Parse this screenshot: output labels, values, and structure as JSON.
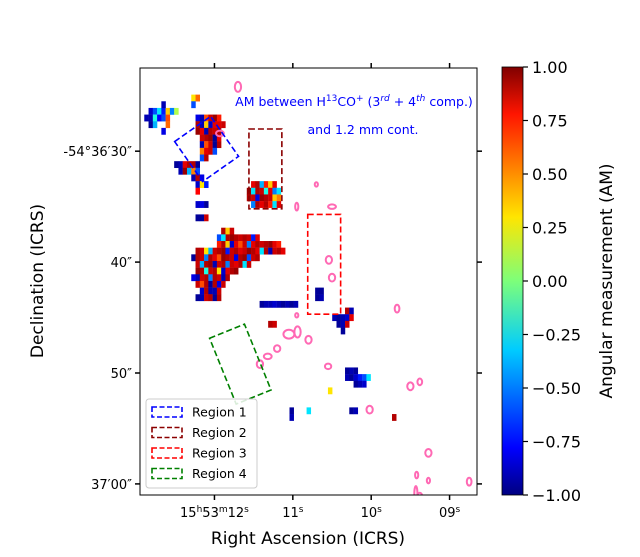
{
  "chart_data": {
    "type": "heatmap",
    "title": "",
    "annotation": {
      "line1": {
        "a": "AM between H",
        "sup1": "13",
        "b": "CO",
        "sup2": "+",
        "c": " (3",
        "sup3": "rd",
        "d": " + 4",
        "sup4": "th",
        "e": " comp.)"
      },
      "line2": "and 1.2 mm cont."
    },
    "xlabel": "Right Ascension (ICRS)",
    "ylabel": "Declination (ICRS)",
    "xlim_s": [
      12.95,
      8.65
    ],
    "ylim_arcsec": [
      61.0,
      22.5
    ],
    "xticks": [
      {
        "value": 12.0,
        "main": "15",
        "sup1": "h",
        "mid": "53",
        "sup2": "m",
        "end": "12",
        "sup3": "s"
      },
      {
        "value": 11.0,
        "main": "11",
        "sup1": "s"
      },
      {
        "value": 10.0,
        "main": "10",
        "sup1": "s"
      },
      {
        "value": 9.0,
        "main": "09",
        "sup1": "s"
      }
    ],
    "yticks": [
      {
        "value": 30.0,
        "label": "-54°36′30″"
      },
      {
        "value": 40.0,
        "label": "40″"
      },
      {
        "value": 50.0,
        "label": "50″"
      },
      {
        "value": 60.0,
        "label": "37′00″"
      }
    ],
    "colorbar": {
      "label": "Angular measurement (AM)",
      "ticks": [
        "1.00",
        "0.75",
        "0.50",
        "0.25",
        "0.00",
        "−0.25",
        "−0.50",
        "−0.75",
        "−1.00"
      ],
      "tick_values": [
        1.0,
        0.75,
        0.5,
        0.25,
        0.0,
        -0.25,
        -0.5,
        -0.75,
        -1.0
      ],
      "range": [
        -1.0,
        1.0
      ]
    },
    "pixel_grid": {
      "ra_origin_s": 12.95,
      "dec_origin_arcsec": 22.5,
      "ra_step_s": 0.0545,
      "dec_step_arcsec": 0.6
    },
    "pixels": [
      [
        2,
        6,
        -0.85
      ],
      [
        3,
        6,
        -0.6
      ],
      [
        4,
        6,
        -0.3
      ],
      [
        5,
        6,
        -0.7
      ],
      [
        6,
        6,
        0.35
      ],
      [
        7,
        6,
        -0.5
      ],
      [
        8,
        6,
        0.1
      ],
      [
        1,
        7,
        -0.9
      ],
      [
        2,
        7,
        -0.9
      ],
      [
        3,
        7,
        -0.2
      ],
      [
        4,
        7,
        -0.75
      ],
      [
        5,
        7,
        -0.6
      ],
      [
        6,
        7,
        0.6
      ],
      [
        2,
        8,
        -0.95
      ],
      [
        3,
        8,
        -0.4
      ],
      [
        6,
        8,
        0.55
      ],
      [
        5,
        5,
        -0.9
      ],
      [
        5,
        9,
        -0.8
      ],
      [
        12,
        4,
        0.3
      ],
      [
        12,
        5,
        -0.6
      ],
      [
        13,
        4,
        0.55
      ],
      [
        13,
        7,
        -0.8
      ],
      [
        14,
        7,
        -0.9
      ],
      [
        15,
        7,
        0.6
      ],
      [
        16,
        7,
        0.85
      ],
      [
        17,
        7,
        0.95
      ],
      [
        18,
        7,
        0.7
      ],
      [
        13,
        8,
        0.9
      ],
      [
        14,
        8,
        -0.9
      ],
      [
        15,
        8,
        0.35
      ],
      [
        16,
        8,
        -0.85
      ],
      [
        17,
        8,
        0.8
      ],
      [
        18,
        8,
        0.8
      ],
      [
        19,
        8,
        0.85
      ],
      [
        13,
        9,
        0.95
      ],
      [
        14,
        9,
        0.8
      ],
      [
        15,
        9,
        -0.9
      ],
      [
        16,
        9,
        0.9
      ],
      [
        17,
        9,
        0.85
      ],
      [
        18,
        9,
        0.9
      ],
      [
        14,
        10,
        0.85
      ],
      [
        15,
        10,
        0.9
      ],
      [
        16,
        10,
        0.95
      ],
      [
        17,
        10,
        -0.95
      ],
      [
        18,
        10,
        0.8
      ],
      [
        14,
        11,
        -0.9
      ],
      [
        15,
        11,
        0.6
      ],
      [
        16,
        11,
        0.85
      ],
      [
        17,
        11,
        -0.95
      ],
      [
        18,
        11,
        0.9
      ],
      [
        14,
        12,
        0.5
      ],
      [
        15,
        12,
        0.8
      ],
      [
        16,
        12,
        0.85
      ],
      [
        17,
        12,
        -0.6
      ],
      [
        14,
        13,
        -0.6
      ],
      [
        15,
        13,
        0.9
      ],
      [
        8,
        14,
        -0.95
      ],
      [
        9,
        14,
        -0.9
      ],
      [
        10,
        14,
        0.8
      ],
      [
        11,
        14,
        0.9
      ],
      [
        12,
        14,
        0.9
      ],
      [
        13,
        14,
        -0.95
      ],
      [
        9,
        15,
        -0.9
      ],
      [
        10,
        15,
        0.95
      ],
      [
        11,
        15,
        -0.4
      ],
      [
        12,
        15,
        0.5
      ],
      [
        13,
        15,
        -0.6
      ],
      [
        12,
        16,
        -0.9
      ],
      [
        13,
        16,
        0.9
      ],
      [
        14,
        16,
        -0.8
      ],
      [
        13,
        17,
        -0.85
      ],
      [
        14,
        17,
        0.3
      ],
      [
        15,
        17,
        -0.7
      ],
      [
        13,
        18,
        0.75
      ],
      [
        26,
        17,
        0.8
      ],
      [
        27,
        17,
        0.9
      ],
      [
        28,
        17,
        -0.4
      ],
      [
        29,
        17,
        0.7
      ],
      [
        30,
        17,
        0.35
      ],
      [
        31,
        17,
        0.8
      ],
      [
        25,
        18,
        0.95
      ],
      [
        26,
        18,
        -0.3
      ],
      [
        27,
        18,
        0.9
      ],
      [
        28,
        18,
        0.85
      ],
      [
        29,
        18,
        -0.2
      ],
      [
        30,
        18,
        0.8
      ],
      [
        31,
        18,
        -0.5
      ],
      [
        32,
        18,
        -0.3
      ],
      [
        25,
        19,
        0.9
      ],
      [
        26,
        19,
        0.85
      ],
      [
        27,
        19,
        -0.8
      ],
      [
        28,
        19,
        0.95
      ],
      [
        29,
        19,
        0.9
      ],
      [
        30,
        19,
        0.85
      ],
      [
        31,
        19,
        0.35
      ],
      [
        32,
        19,
        0.5
      ],
      [
        26,
        20,
        -0.5
      ],
      [
        27,
        20,
        0.9
      ],
      [
        28,
        20,
        0.8
      ],
      [
        29,
        20,
        0.9
      ],
      [
        30,
        20,
        0.7
      ],
      [
        31,
        20,
        -0.3
      ],
      [
        32,
        20,
        0.8
      ],
      [
        13,
        20,
        -0.85
      ],
      [
        14,
        20,
        -0.8
      ],
      [
        15,
        20,
        -0.95
      ],
      [
        13,
        22,
        -0.95
      ],
      [
        14,
        22,
        -0.95
      ],
      [
        15,
        22,
        0.85
      ],
      [
        19,
        24,
        0.9
      ],
      [
        20,
        24,
        0.35
      ],
      [
        21,
        24,
        0.85
      ],
      [
        20,
        25,
        0.9
      ],
      [
        21,
        25,
        0.95
      ],
      [
        22,
        25,
        0.9
      ],
      [
        23,
        25,
        0.85
      ],
      [
        24,
        25,
        0.9
      ],
      [
        25,
        25,
        0.85
      ],
      [
        18,
        25,
        -0.6
      ],
      [
        19,
        25,
        -0.3
      ],
      [
        26,
        25,
        -0.7
      ],
      [
        27,
        25,
        0.8
      ],
      [
        18,
        26,
        0.7
      ],
      [
        19,
        26,
        0.9
      ],
      [
        20,
        26,
        0.35
      ],
      [
        21,
        26,
        -0.85
      ],
      [
        22,
        26,
        0.8
      ],
      [
        23,
        26,
        0.6
      ],
      [
        24,
        26,
        0.85
      ],
      [
        25,
        26,
        -0.5
      ],
      [
        26,
        26,
        0.8
      ],
      [
        27,
        26,
        0.9
      ],
      [
        28,
        26,
        0.85
      ],
      [
        29,
        26,
        0.9
      ],
      [
        30,
        26,
        0.95
      ],
      [
        31,
        26,
        0.8
      ],
      [
        32,
        26,
        0.7
      ],
      [
        13,
        27,
        0.9
      ],
      [
        14,
        27,
        0.85
      ],
      [
        15,
        27,
        0.3
      ],
      [
        16,
        27,
        -0.4
      ],
      [
        17,
        27,
        0.85
      ],
      [
        18,
        27,
        0.9
      ],
      [
        19,
        27,
        0.95
      ],
      [
        20,
        27,
        -0.7
      ],
      [
        21,
        27,
        0.85
      ],
      [
        22,
        27,
        0.9
      ],
      [
        23,
        27,
        0.8
      ],
      [
        24,
        27,
        0.85
      ],
      [
        25,
        27,
        0.95
      ],
      [
        26,
        27,
        0.9
      ],
      [
        27,
        27,
        0.8
      ],
      [
        28,
        27,
        -0.3
      ],
      [
        29,
        27,
        0.9
      ],
      [
        30,
        27,
        -0.9
      ],
      [
        31,
        27,
        0.85
      ],
      [
        32,
        27,
        0.9
      ],
      [
        33,
        27,
        0.8
      ],
      [
        12,
        28,
        -0.95
      ],
      [
        13,
        28,
        0.9
      ],
      [
        14,
        28,
        0.85
      ],
      [
        15,
        28,
        -0.5
      ],
      [
        16,
        28,
        0.9
      ],
      [
        17,
        28,
        0.8
      ],
      [
        18,
        28,
        0.6
      ],
      [
        19,
        28,
        0.95
      ],
      [
        20,
        28,
        0.9
      ],
      [
        21,
        28,
        0.85
      ],
      [
        22,
        28,
        -0.8
      ],
      [
        23,
        28,
        0.9
      ],
      [
        24,
        28,
        0.95
      ],
      [
        25,
        28,
        -0.6
      ],
      [
        26,
        28,
        0.85
      ],
      [
        27,
        28,
        0.9
      ],
      [
        13,
        29,
        0.85
      ],
      [
        14,
        29,
        -0.4
      ],
      [
        15,
        29,
        0.9
      ],
      [
        16,
        29,
        0.95
      ],
      [
        17,
        29,
        -0.9
      ],
      [
        18,
        29,
        0.85
      ],
      [
        19,
        29,
        0.9
      ],
      [
        20,
        29,
        -0.5
      ],
      [
        21,
        29,
        0.85
      ],
      [
        22,
        29,
        0.8
      ],
      [
        23,
        29,
        0.9
      ],
      [
        24,
        29,
        -0.3
      ],
      [
        25,
        29,
        0.85
      ],
      [
        13,
        30,
        0.95
      ],
      [
        14,
        30,
        0.9
      ],
      [
        15,
        30,
        -0.2
      ],
      [
        16,
        30,
        0.85
      ],
      [
        17,
        30,
        0.9
      ],
      [
        18,
        30,
        0.3
      ],
      [
        19,
        30,
        -0.85
      ],
      [
        20,
        30,
        0.8
      ],
      [
        21,
        30,
        0.9
      ],
      [
        22,
        30,
        0.95
      ],
      [
        12,
        31,
        -0.8
      ],
      [
        13,
        31,
        -0.9
      ],
      [
        14,
        31,
        0.85
      ],
      [
        15,
        31,
        0.9
      ],
      [
        16,
        31,
        -0.5
      ],
      [
        17,
        31,
        0.9
      ],
      [
        18,
        31,
        0.85
      ],
      [
        19,
        31,
        -0.9
      ],
      [
        20,
        31,
        0.9
      ],
      [
        13,
        32,
        0.85
      ],
      [
        14,
        32,
        0.6
      ],
      [
        15,
        32,
        0.9
      ],
      [
        16,
        32,
        -0.95
      ],
      [
        17,
        32,
        0.9
      ],
      [
        18,
        32,
        -0.8
      ],
      [
        19,
        32,
        0.85
      ],
      [
        14,
        33,
        -0.85
      ],
      [
        15,
        33,
        0.9
      ],
      [
        16,
        33,
        -0.9
      ],
      [
        17,
        33,
        -0.9
      ],
      [
        18,
        33,
        0.85
      ],
      [
        13,
        34,
        -0.95
      ],
      [
        14,
        34,
        -0.9
      ],
      [
        15,
        34,
        0.85
      ],
      [
        16,
        34,
        0.9
      ],
      [
        17,
        34,
        -0.95
      ],
      [
        18,
        34,
        0.9
      ],
      [
        28,
        35,
        -0.95
      ],
      [
        29,
        35,
        -0.9
      ],
      [
        30,
        35,
        -0.9
      ],
      [
        31,
        35,
        -0.85
      ],
      [
        32,
        35,
        -0.9
      ],
      [
        33,
        35,
        -0.95
      ],
      [
        34,
        35,
        -0.9
      ],
      [
        35,
        35,
        -0.95
      ],
      [
        36,
        35,
        -0.9
      ],
      [
        41,
        34,
        -0.95
      ],
      [
        42,
        34,
        -0.9
      ],
      [
        41,
        33,
        -0.95
      ],
      [
        42,
        33,
        -0.95
      ],
      [
        48,
        36,
        0.9
      ],
      [
        49,
        36,
        -0.9
      ],
      [
        45,
        37,
        -0.9
      ],
      [
        46,
        37,
        -0.95
      ],
      [
        47,
        37,
        -0.9
      ],
      [
        48,
        37,
        -0.85
      ],
      [
        49,
        37,
        0.8
      ],
      [
        46,
        38,
        -0.95
      ],
      [
        47,
        38,
        -0.9
      ],
      [
        48,
        38,
        0.85
      ],
      [
        47,
        39,
        -0.95
      ],
      [
        30,
        38,
        0.9
      ],
      [
        31,
        38,
        0.85
      ],
      [
        48,
        45,
        -0.95
      ],
      [
        49,
        45,
        -0.9
      ],
      [
        50,
        45,
        -0.95
      ],
      [
        48,
        46,
        -0.9
      ],
      [
        49,
        46,
        -0.95
      ],
      [
        50,
        46,
        -0.85
      ],
      [
        51,
        46,
        -0.7
      ],
      [
        52,
        46,
        -0.6
      ],
      [
        53,
        46,
        -0.3
      ],
      [
        50,
        47,
        -0.95
      ],
      [
        51,
        47,
        -0.9
      ],
      [
        52,
        47,
        -0.85
      ],
      [
        44,
        48,
        0.3
      ],
      [
        35,
        51,
        -0.95
      ],
      [
        39,
        51,
        -0.3
      ],
      [
        35,
        52,
        -0.9
      ],
      [
        49,
        51,
        -0.95
      ],
      [
        50,
        51,
        -0.9
      ],
      [
        59,
        52,
        0.9
      ]
    ],
    "regions": [
      {
        "name": "Region 1",
        "color": "#0000ff",
        "ra_s": 12.1,
        "dec_arcsec": 29.8,
        "half_w_s": 0.28,
        "half_h_arcsec": 2.2,
        "angle_deg": -35
      },
      {
        "name": "Region 2",
        "color": "#8b0000",
        "ra_s": 11.35,
        "dec_arcsec": 31.6,
        "half_w_s": 0.21,
        "half_h_arcsec": 3.6,
        "angle_deg": 0
      },
      {
        "name": "Region 3",
        "color": "#ff0000",
        "ra_s": 10.6,
        "dec_arcsec": 40.2,
        "half_w_s": 0.21,
        "half_h_arcsec": 4.5,
        "angle_deg": 0
      },
      {
        "name": "Region 4",
        "color": "#008000",
        "ra_s": 11.67,
        "dec_arcsec": 49.2,
        "half_w_s": 0.24,
        "half_h_arcsec": 3.2,
        "angle_deg": -22
      }
    ],
    "contours": [
      [
        11.7,
        24.2,
        0.04,
        0.45
      ],
      [
        11.93,
        28.4,
        0.05,
        0.25
      ],
      [
        10.7,
        33.0,
        0.02,
        0.2
      ],
      [
        10.95,
        35.0,
        0.02,
        0.35
      ],
      [
        10.5,
        35.0,
        0.05,
        0.2
      ],
      [
        10.54,
        39.8,
        0.04,
        0.35
      ],
      [
        10.5,
        41.4,
        0.04,
        0.35
      ],
      [
        9.67,
        44.2,
        0.03,
        0.35
      ],
      [
        10.95,
        44.8,
        0.02,
        0.2
      ],
      [
        10.94,
        46.3,
        0.04,
        0.5
      ],
      [
        10.8,
        47.0,
        0.04,
        0.35
      ],
      [
        11.32,
        48.5,
        0.05,
        0.25
      ],
      [
        11.2,
        47.8,
        0.04,
        0.3
      ],
      [
        10.55,
        49.4,
        0.04,
        0.25
      ],
      [
        11.42,
        49.2,
        0.04,
        0.35
      ],
      [
        11.05,
        46.5,
        0.07,
        0.4
      ],
      [
        9.5,
        51.2,
        0.04,
        0.35
      ],
      [
        9.38,
        50.8,
        0.03,
        0.3
      ],
      [
        10.02,
        53.3,
        0.04,
        0.35
      ],
      [
        9.27,
        57.2,
        0.04,
        0.35
      ],
      [
        9.42,
        59.2,
        0.02,
        0.3
      ],
      [
        9.27,
        59.7,
        0.02,
        0.25
      ],
      [
        9.43,
        60.9,
        0.02,
        0.7
      ],
      [
        9.38,
        61.1,
        0.03,
        0.3
      ],
      [
        8.75,
        59.8,
        0.03,
        0.35
      ]
    ]
  }
}
